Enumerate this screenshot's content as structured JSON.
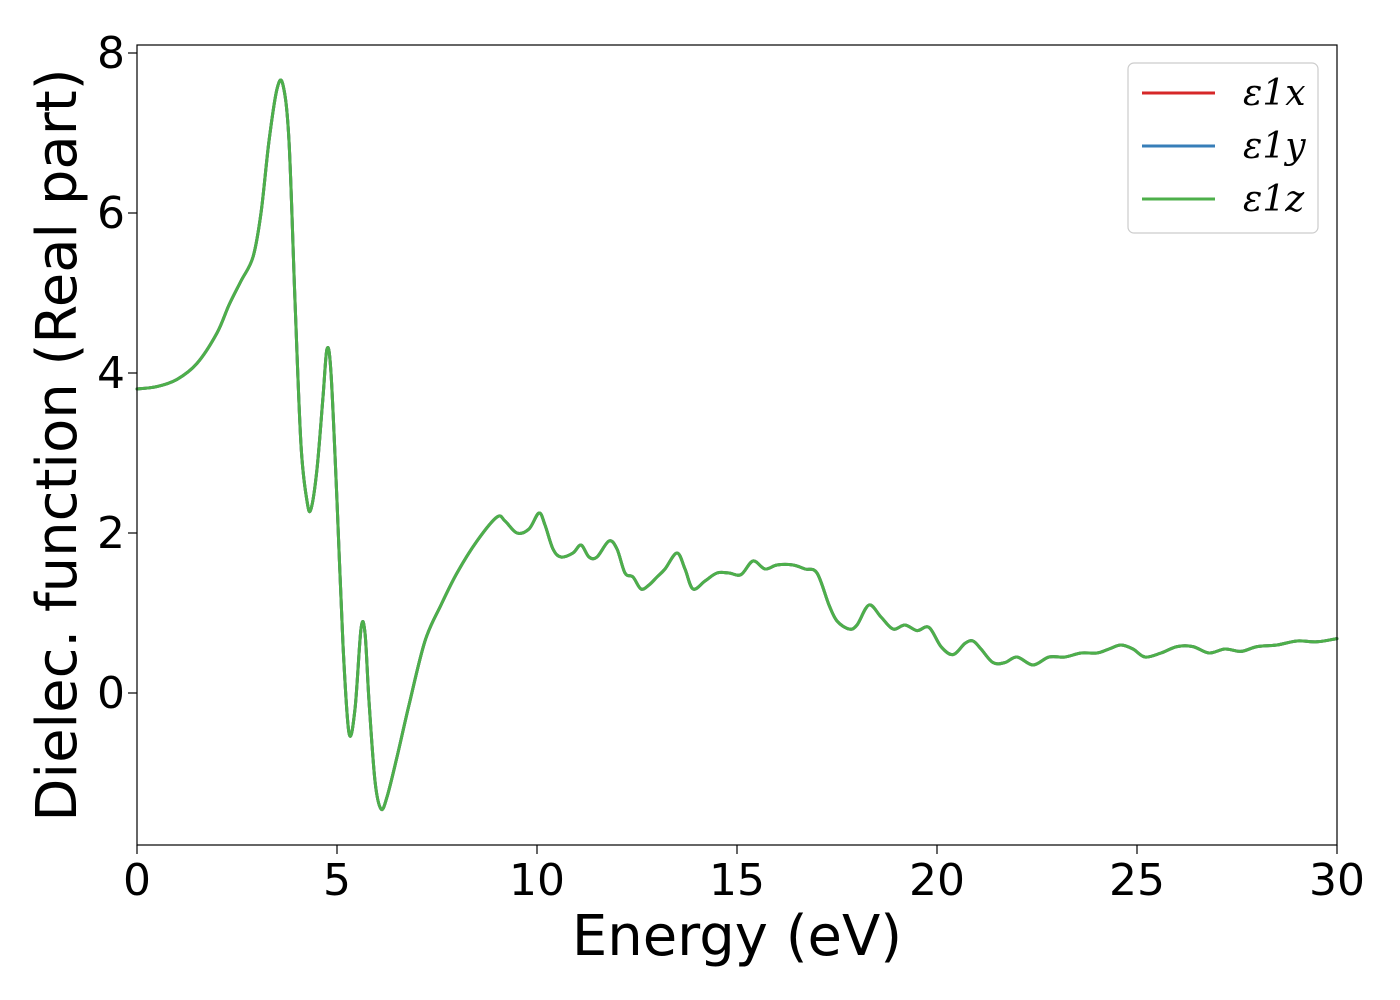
{
  "chart_data": {
    "type": "line",
    "title": "",
    "xlabel": "Energy (eV)",
    "ylabel": "Dielec. function (Real part)",
    "xlim": [
      0,
      30
    ],
    "ylim": [
      -1.9,
      8.1
    ],
    "xticks": [
      0,
      5,
      10,
      15,
      20,
      25,
      30
    ],
    "yticks": [
      0,
      2,
      4,
      6,
      8
    ],
    "xtick_labels": [
      "0",
      "5",
      "10",
      "15",
      "20",
      "25",
      "30"
    ],
    "ytick_labels": [
      "0",
      "2",
      "4",
      "6",
      "8"
    ],
    "grid": false,
    "legend_position": "top-right",
    "x": [
      0.0,
      0.5,
      1.0,
      1.5,
      2.0,
      2.3,
      2.6,
      2.9,
      3.1,
      3.3,
      3.5,
      3.65,
      3.8,
      3.95,
      4.1,
      4.25,
      4.35,
      4.5,
      4.65,
      4.75,
      4.85,
      5.0,
      5.15,
      5.3,
      5.45,
      5.6,
      5.7,
      5.8,
      5.95,
      6.1,
      6.25,
      6.5,
      6.8,
      7.2,
      7.6,
      8.0,
      8.5,
      9.0,
      9.2,
      9.5,
      9.8,
      10.05,
      10.2,
      10.4,
      10.6,
      10.9,
      11.1,
      11.3,
      11.5,
      11.8,
      12.0,
      12.2,
      12.4,
      12.6,
      12.8,
      13.0,
      13.2,
      13.5,
      13.7,
      13.9,
      14.2,
      14.5,
      14.8,
      15.1,
      15.4,
      15.7,
      16.0,
      16.4,
      16.7,
      17.0,
      17.3,
      17.5,
      17.8,
      18.0,
      18.3,
      18.6,
      18.9,
      19.2,
      19.5,
      19.8,
      20.1,
      20.4,
      20.7,
      20.9,
      21.1,
      21.4,
      21.7,
      22.0,
      22.4,
      22.8,
      23.2,
      23.6,
      24.0,
      24.3,
      24.6,
      24.9,
      25.2,
      25.6,
      26.0,
      26.4,
      26.8,
      27.2,
      27.6,
      28.0,
      28.5,
      29.0,
      29.5,
      30.0
    ],
    "series": [
      {
        "name": "ε1x",
        "color": "#d62728",
        "values": [
          3.8,
          3.83,
          3.92,
          4.12,
          4.5,
          4.85,
          5.15,
          5.45,
          6.0,
          6.9,
          7.55,
          7.6,
          6.9,
          4.9,
          3.1,
          2.4,
          2.3,
          2.8,
          3.7,
          4.3,
          4.0,
          2.4,
          0.6,
          -0.5,
          -0.2,
          0.8,
          0.75,
          -0.1,
          -1.1,
          -1.45,
          -1.3,
          -0.8,
          -0.15,
          0.65,
          1.1,
          1.5,
          1.9,
          2.2,
          2.15,
          2.0,
          2.05,
          2.25,
          2.1,
          1.8,
          1.7,
          1.75,
          1.85,
          1.7,
          1.7,
          1.9,
          1.8,
          1.5,
          1.45,
          1.3,
          1.35,
          1.45,
          1.55,
          1.75,
          1.55,
          1.3,
          1.4,
          1.5,
          1.5,
          1.48,
          1.65,
          1.55,
          1.6,
          1.6,
          1.55,
          1.5,
          1.1,
          0.9,
          0.8,
          0.85,
          1.1,
          0.95,
          0.8,
          0.85,
          0.78,
          0.82,
          0.58,
          0.48,
          0.62,
          0.65,
          0.55,
          0.38,
          0.38,
          0.45,
          0.35,
          0.45,
          0.45,
          0.5,
          0.5,
          0.55,
          0.6,
          0.55,
          0.45,
          0.5,
          0.58,
          0.58,
          0.5,
          0.55,
          0.52,
          0.58,
          0.6,
          0.65,
          0.64,
          0.68
        ]
      },
      {
        "name": "ε1y",
        "color": "#377eb8",
        "values": [
          3.8,
          3.83,
          3.92,
          4.12,
          4.5,
          4.85,
          5.15,
          5.45,
          6.0,
          6.9,
          7.55,
          7.6,
          6.9,
          4.9,
          3.1,
          2.4,
          2.3,
          2.8,
          3.7,
          4.3,
          4.0,
          2.4,
          0.6,
          -0.5,
          -0.2,
          0.8,
          0.75,
          -0.1,
          -1.1,
          -1.45,
          -1.3,
          -0.8,
          -0.15,
          0.65,
          1.1,
          1.5,
          1.9,
          2.2,
          2.15,
          2.0,
          2.05,
          2.25,
          2.1,
          1.8,
          1.7,
          1.75,
          1.85,
          1.7,
          1.7,
          1.9,
          1.8,
          1.5,
          1.45,
          1.3,
          1.35,
          1.45,
          1.55,
          1.75,
          1.55,
          1.3,
          1.4,
          1.5,
          1.5,
          1.48,
          1.65,
          1.55,
          1.6,
          1.6,
          1.55,
          1.5,
          1.1,
          0.9,
          0.8,
          0.85,
          1.1,
          0.95,
          0.8,
          0.85,
          0.78,
          0.82,
          0.58,
          0.48,
          0.62,
          0.65,
          0.55,
          0.38,
          0.38,
          0.45,
          0.35,
          0.45,
          0.45,
          0.5,
          0.5,
          0.55,
          0.6,
          0.55,
          0.45,
          0.5,
          0.58,
          0.58,
          0.5,
          0.55,
          0.52,
          0.58,
          0.6,
          0.65,
          0.64,
          0.68
        ]
      },
      {
        "name": "ε1z",
        "color": "#4daf4a",
        "values": [
          3.8,
          3.83,
          3.92,
          4.12,
          4.5,
          4.85,
          5.15,
          5.45,
          6.0,
          6.9,
          7.55,
          7.6,
          6.9,
          4.9,
          3.1,
          2.4,
          2.3,
          2.8,
          3.7,
          4.3,
          4.0,
          2.4,
          0.6,
          -0.5,
          -0.2,
          0.8,
          0.75,
          -0.1,
          -1.1,
          -1.45,
          -1.3,
          -0.8,
          -0.15,
          0.65,
          1.1,
          1.5,
          1.9,
          2.2,
          2.15,
          2.0,
          2.05,
          2.25,
          2.1,
          1.8,
          1.7,
          1.75,
          1.85,
          1.7,
          1.7,
          1.9,
          1.8,
          1.5,
          1.45,
          1.3,
          1.35,
          1.45,
          1.55,
          1.75,
          1.55,
          1.3,
          1.4,
          1.5,
          1.5,
          1.48,
          1.65,
          1.55,
          1.6,
          1.6,
          1.55,
          1.5,
          1.1,
          0.9,
          0.8,
          0.85,
          1.1,
          0.95,
          0.8,
          0.85,
          0.78,
          0.82,
          0.58,
          0.48,
          0.62,
          0.65,
          0.55,
          0.38,
          0.38,
          0.45,
          0.35,
          0.45,
          0.45,
          0.5,
          0.5,
          0.55,
          0.6,
          0.55,
          0.45,
          0.5,
          0.58,
          0.58,
          0.5,
          0.55,
          0.52,
          0.58,
          0.6,
          0.65,
          0.64,
          0.68
        ]
      }
    ]
  }
}
